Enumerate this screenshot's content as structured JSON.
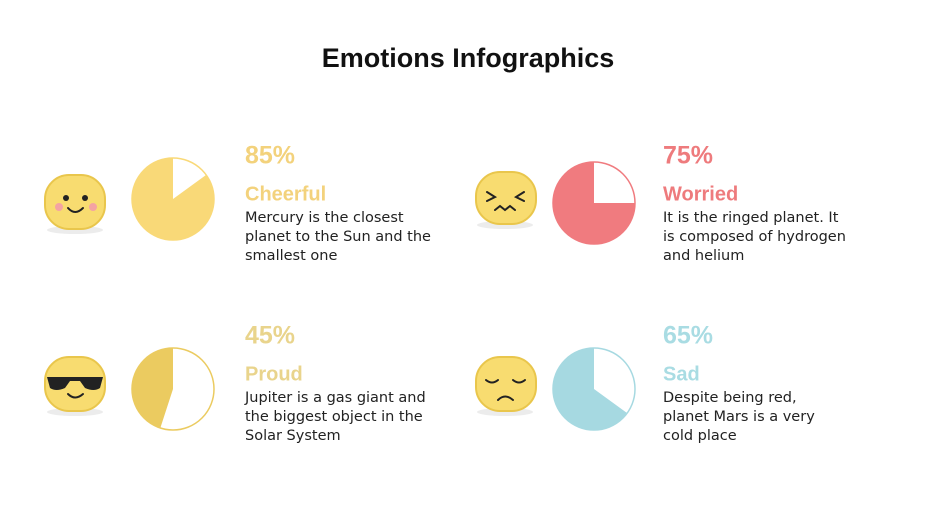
{
  "title": "Emotions Infographics",
  "chart_data": [
    {
      "type": "pie",
      "categories": [
        "Cheerful"
      ],
      "values": [
        85
      ],
      "value_labels": [
        "85%"
      ],
      "color": "#f9d978",
      "label_color": "#f3d27c",
      "description": [
        "Mercury is the closest",
        "planet to the Sun and the",
        "smallest one"
      ]
    },
    {
      "type": "pie",
      "categories": [
        "Worried"
      ],
      "values": [
        75
      ],
      "value_labels": [
        "75%"
      ],
      "color": "#f07b7f",
      "label_color": "#ee7b7d",
      "description": [
        "It is the ringed planet. It",
        "is composed of hydrogen",
        "and helium"
      ]
    },
    {
      "type": "pie",
      "categories": [
        "Proud"
      ],
      "values": [
        45
      ],
      "value_labels": [
        "45%"
      ],
      "color": "#ebcb60",
      "label_color": "#e9d48c",
      "description": [
        "Jupiter is a gas giant and",
        "the biggest object in the",
        "Solar System"
      ]
    },
    {
      "type": "pie",
      "categories": [
        "Sad"
      ],
      "values": [
        65
      ],
      "value_labels": [
        "65%"
      ],
      "color": "#a6d9e1",
      "label_color": "#a9dce3",
      "description": [
        "Despite being red,",
        "planet Mars is a very",
        "cold place"
      ]
    }
  ]
}
